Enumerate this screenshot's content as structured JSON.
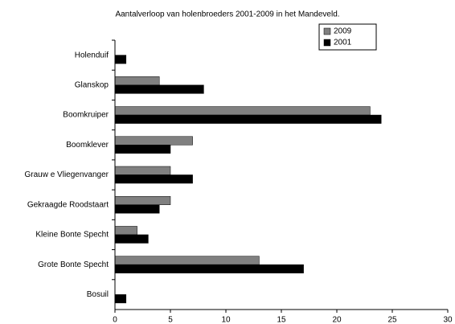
{
  "chart_data": {
    "type": "hbar",
    "title": "Aantalverloop van holenbroeders 2001-2009 in het Mandeveld.",
    "categories": [
      "Holenduif",
      "Glanskop",
      "Boomkruiper",
      "Boomklever",
      "Grauw e Vliegenvanger",
      "Gekraagde Roodstaart",
      "Kleine Bonte Specht",
      "Grote Bonte Specht",
      "Bosuil"
    ],
    "series": [
      {
        "name": "2009",
        "color": "#808080",
        "values": [
          0,
          4,
          23,
          7,
          5,
          5,
          2,
          13,
          0
        ]
      },
      {
        "name": "2001",
        "color": "#000000",
        "values": [
          1,
          8,
          24,
          5,
          7,
          4,
          3,
          17,
          1
        ]
      }
    ],
    "xlim": [
      0,
      30
    ],
    "xticks": [
      0,
      5,
      10,
      15,
      20,
      25,
      30
    ],
    "legend": "top-right"
  }
}
